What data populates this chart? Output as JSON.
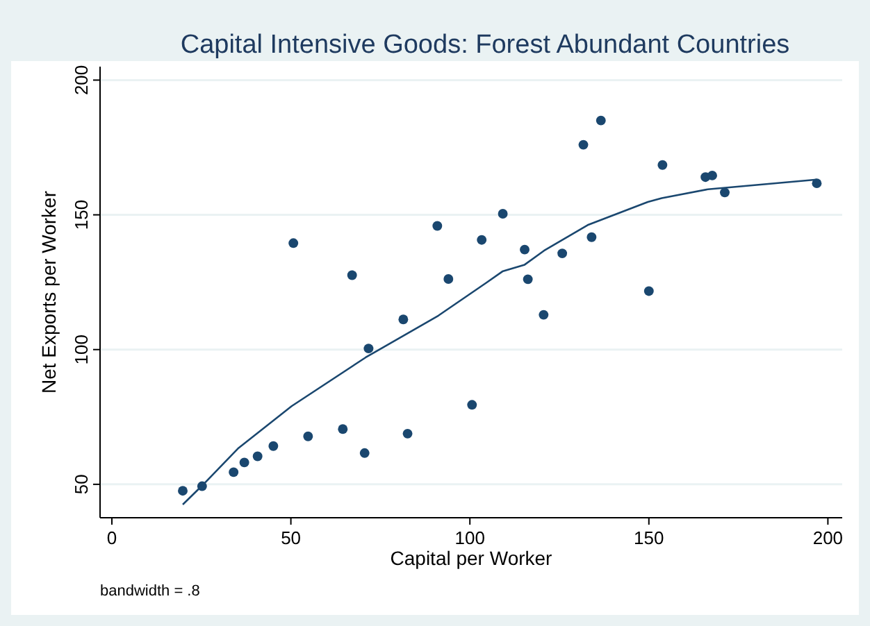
{
  "chart_data": {
    "type": "scatter",
    "title": "Capital Intensive Goods: Forest Abundant Countries",
    "xlabel": "Capital per Worker",
    "ylabel": "Net Exports per Worker",
    "annotations": [
      "bandwidth = .8"
    ],
    "xlim": [
      -3.3,
      204
    ],
    "xticks": [
      0,
      50,
      100,
      150,
      200
    ],
    "ylim": [
      37.6,
      205
    ],
    "yticks": [
      50,
      100,
      150,
      200
    ],
    "grid": "y",
    "marker": "circle",
    "series": [
      {
        "color": "#1a476f",
        "x": [
          19.8,
          25.2,
          34.0,
          37.0,
          40.7,
          45.1,
          50.7,
          54.8,
          64.5,
          67.1,
          70.6,
          71.7,
          81.4,
          82.6,
          90.9,
          94.0,
          100.6,
          103.3,
          109.2,
          115.3,
          116.2,
          120.6,
          125.8,
          131.7,
          134.0,
          136.6,
          150.0,
          153.8,
          165.8,
          167.7,
          171.2,
          196.9
        ],
        "values": [
          47.6,
          49.3,
          54.5,
          58.1,
          60.4,
          64.2,
          139.5,
          67.8,
          70.5,
          127.6,
          61.6,
          100.4,
          111.2,
          68.8,
          145.9,
          126.2,
          79.5,
          140.7,
          150.4,
          137.1,
          126.1,
          112.9,
          135.7,
          176.0,
          141.7,
          185.0,
          121.7,
          168.5,
          164.0,
          164.6,
          158.3,
          161.7
        ]
      },
      {
        "type": "line",
        "color": "#1a476f",
        "marker": "none",
        "line_style": "solid",
        "x": [
          19.8,
          25.2,
          35.4,
          50.2,
          70.9,
          91.2,
          104.5,
          109.1,
          115.3,
          120.7,
          132.9,
          149.7,
          153.6,
          166.5,
          196.9
        ],
        "values": [
          42.5,
          49.5,
          63.5,
          79.0,
          97.1,
          112.6,
          124.7,
          129.0,
          131.5,
          136.7,
          146.2,
          154.8,
          156.2,
          159.5,
          163.1
        ]
      }
    ]
  }
}
